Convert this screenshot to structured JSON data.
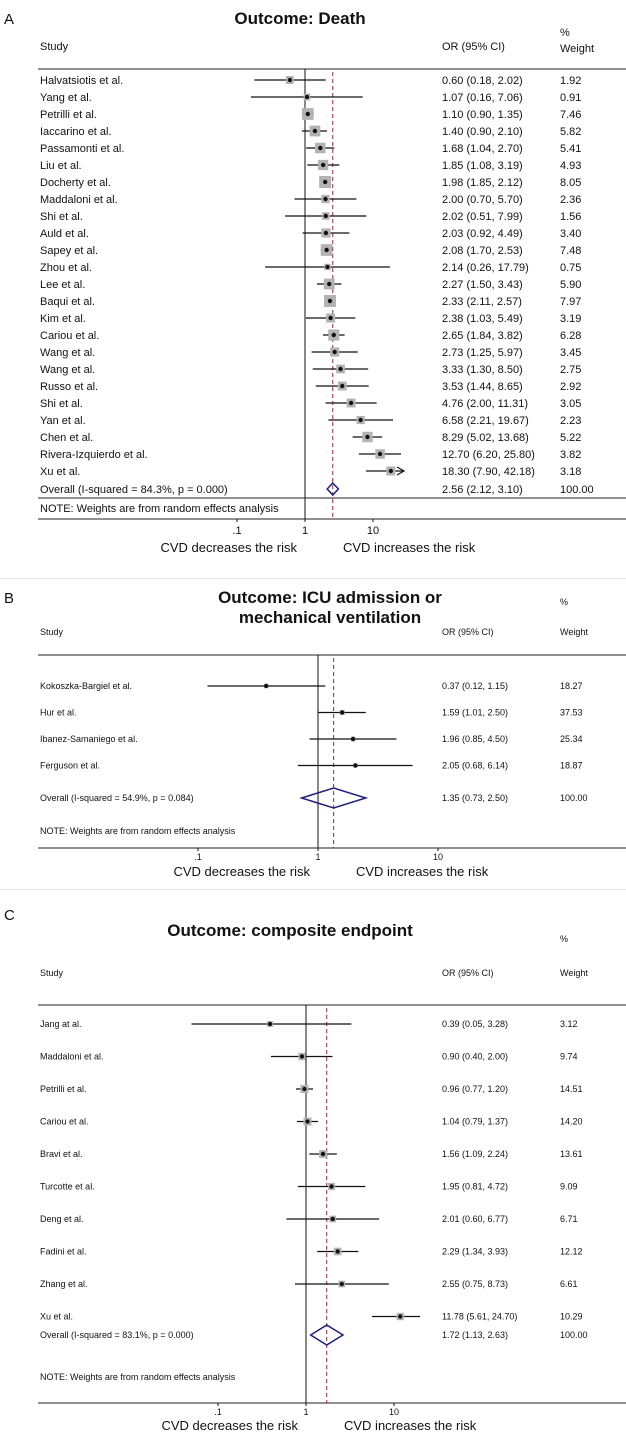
{
  "chart_data": [
    {
      "type": "forest",
      "panel_letter": "A",
      "title": [
        "Outcome: Death"
      ],
      "columns": {
        "study": "Study",
        "or": "OR (95% CI)",
        "weight_top": "%",
        "weight": "Weight"
      },
      "x_scale": "log",
      "x_ticks": [
        ".1",
        "1",
        "10"
      ],
      "x_tick_values": [
        0.1,
        1,
        10
      ],
      "null_value": 1,
      "overall_line": 2.56,
      "left_caption": "CVD decreases the risk",
      "right_caption": "CVD increases the risk",
      "note": "NOTE: Weights are from random effects analysis",
      "studies": [
        {
          "name": "Halvatsiotis et al.",
          "or": 0.6,
          "lo": 0.18,
          "hi": 2.02,
          "or_text": "0.60 (0.18, 2.02)",
          "weight": "1.92"
        },
        {
          "name": "Yang et al.",
          "or": 1.07,
          "lo": 0.16,
          "hi": 7.06,
          "or_text": "1.07 (0.16, 7.06)",
          "weight": "0.91"
        },
        {
          "name": "Petrilli et al.",
          "or": 1.1,
          "lo": 0.9,
          "hi": 1.35,
          "or_text": "1.10 (0.90, 1.35)",
          "weight": "7.46"
        },
        {
          "name": "Iaccarino et al.",
          "or": 1.4,
          "lo": 0.9,
          "hi": 2.1,
          "or_text": "1.40 (0.90, 2.10)",
          "weight": "5.82"
        },
        {
          "name": "Passamonti et al.",
          "or": 1.68,
          "lo": 1.04,
          "hi": 2.7,
          "or_text": "1.68 (1.04, 2.70)",
          "weight": "5.41"
        },
        {
          "name": "Liu et al.",
          "or": 1.85,
          "lo": 1.08,
          "hi": 3.19,
          "or_text": "1.85 (1.08, 3.19)",
          "weight": "4.93"
        },
        {
          "name": "Docherty et al.",
          "or": 1.98,
          "lo": 1.85,
          "hi": 2.12,
          "or_text": "1.98 (1.85, 2.12)",
          "weight": "8.05"
        },
        {
          "name": "Maddaloni et al.",
          "or": 2.0,
          "lo": 0.7,
          "hi": 5.7,
          "or_text": "2.00 (0.70, 5.70)",
          "weight": "2.36"
        },
        {
          "name": "Shi et al.",
          "or": 2.02,
          "lo": 0.51,
          "hi": 7.99,
          "or_text": "2.02 (0.51, 7.99)",
          "weight": "1.56"
        },
        {
          "name": "Auld et al.",
          "or": 2.03,
          "lo": 0.92,
          "hi": 4.49,
          "or_text": "2.03 (0.92, 4.49)",
          "weight": "3.40"
        },
        {
          "name": "Sapey et al.",
          "or": 2.08,
          "lo": 1.7,
          "hi": 2.53,
          "or_text": "2.08 (1.70, 2.53)",
          "weight": "7.48"
        },
        {
          "name": "Zhou et al.",
          "or": 2.14,
          "lo": 0.26,
          "hi": 17.79,
          "or_text": "2.14 (0.26, 17.79)",
          "weight": "0.75"
        },
        {
          "name": "Lee et al.",
          "or": 2.27,
          "lo": 1.5,
          "hi": 3.43,
          "or_text": "2.27 (1.50, 3.43)",
          "weight": "5.90"
        },
        {
          "name": "Baqui et al.",
          "or": 2.33,
          "lo": 2.11,
          "hi": 2.57,
          "or_text": "2.33 (2.11, 2.57)",
          "weight": "7.97"
        },
        {
          "name": "Kim et al.",
          "or": 2.38,
          "lo": 1.03,
          "hi": 5.49,
          "or_text": "2.38 (1.03, 5.49)",
          "weight": "3.19"
        },
        {
          "name": "Cariou et al.",
          "or": 2.65,
          "lo": 1.84,
          "hi": 3.82,
          "or_text": "2.65 (1.84, 3.82)",
          "weight": "6.28"
        },
        {
          "name": "Wang et al.",
          "or": 2.73,
          "lo": 1.25,
          "hi": 5.97,
          "or_text": "2.73 (1.25, 5.97)",
          "weight": "3.45"
        },
        {
          "name": "Wang et al.",
          "or": 3.33,
          "lo": 1.3,
          "hi": 8.5,
          "or_text": "3.33 (1.30, 8.50)",
          "weight": "2.75"
        },
        {
          "name": "Russo et al.",
          "or": 3.53,
          "lo": 1.44,
          "hi": 8.65,
          "or_text": "3.53 (1.44, 8.65)",
          "weight": "2.92"
        },
        {
          "name": "Shi et al.",
          "or": 4.76,
          "lo": 2.0,
          "hi": 11.31,
          "or_text": "4.76 (2.00, 11.31)",
          "weight": "3.05"
        },
        {
          "name": "Yan et al.",
          "or": 6.58,
          "lo": 2.21,
          "hi": 19.67,
          "or_text": "6.58 (2.21, 19.67)",
          "weight": "2.23"
        },
        {
          "name": "Chen et al.",
          "or": 8.29,
          "lo": 5.02,
          "hi": 13.68,
          "or_text": "8.29 (5.02, 13.68)",
          "weight": "5.22"
        },
        {
          "name": "Rivera-Izquierdo et al.",
          "or": 12.7,
          "lo": 6.2,
          "hi": 25.8,
          "or_text": "12.70 (6.20, 25.80)",
          "weight": "3.82"
        },
        {
          "name": "Xu et al.",
          "or": 18.3,
          "lo": 7.9,
          "hi": 42.18,
          "or_text": "18.30 (7.90, 42.18)",
          "weight": "3.18"
        }
      ],
      "overall": {
        "label": "Overall  (I-squared = 84.3%, p = 0.000)",
        "or": 2.56,
        "lo": 2.12,
        "hi": 3.1,
        "or_text": "2.56 (2.12, 3.10)",
        "weight": "100.00"
      }
    },
    {
      "type": "forest",
      "panel_letter": "B",
      "title": [
        "Outcome: ICU admission or",
        "mechanical ventilation"
      ],
      "columns": {
        "study": "Study",
        "or": "OR (95% CI)",
        "weight_top": "%",
        "weight": "Weight"
      },
      "x_scale": "log",
      "x_ticks": [
        ".1",
        "1",
        "10"
      ],
      "x_tick_values": [
        0.1,
        1,
        10
      ],
      "null_value": 1,
      "overall_line": 1.35,
      "left_caption": "CVD decreases the risk",
      "right_caption": "CVD increases the risk",
      "note": "NOTE: Weights are from random effects analysis",
      "studies": [
        {
          "name": "Kokoszka-Bargiel et al.",
          "or": 0.37,
          "lo": 0.12,
          "hi": 1.15,
          "or_text": "0.37 (0.12, 1.15)",
          "weight": "18.27"
        },
        {
          "name": "Hur et al.",
          "or": 1.59,
          "lo": 1.01,
          "hi": 2.5,
          "or_text": "1.59 (1.01, 2.50)",
          "weight": "37.53"
        },
        {
          "name": "Ibanez-Samaniego et al.",
          "or": 1.96,
          "lo": 0.85,
          "hi": 4.5,
          "or_text": "1.96 (0.85, 4.50)",
          "weight": "25.34"
        },
        {
          "name": "Ferguson et al.",
          "or": 2.05,
          "lo": 0.68,
          "hi": 6.14,
          "or_text": "2.05 (0.68, 6.14)",
          "weight": "18.87"
        }
      ],
      "overall": {
        "label": "Overall  (I-squared = 54.9%, p = 0.084)",
        "or": 1.35,
        "lo": 0.73,
        "hi": 2.5,
        "or_text": "1.35 (0.73, 2.50)",
        "weight": "100.00"
      }
    },
    {
      "type": "forest",
      "panel_letter": "C",
      "title": [
        "Outcome: composite endpoint"
      ],
      "columns": {
        "study": "Study",
        "or": "OR (95% CI)",
        "weight_top": "%",
        "weight": "Weight"
      },
      "x_scale": "log",
      "x_ticks": [
        ".1",
        "1",
        "10"
      ],
      "x_tick_values": [
        0.1,
        1,
        10
      ],
      "null_value": 1,
      "overall_line": 1.72,
      "left_caption": "CVD decreases the risk",
      "right_caption": "CVD increases the risk",
      "note": "NOTE: Weights are from random effects analysis",
      "studies": [
        {
          "name": "Jang at al.",
          "or": 0.39,
          "lo": 0.05,
          "hi": 3.28,
          "or_text": "0.39 (0.05, 3.28)",
          "weight": "3.12"
        },
        {
          "name": "Maddaloni et al.",
          "or": 0.9,
          "lo": 0.4,
          "hi": 2.0,
          "or_text": "0.90 (0.40, 2.00)",
          "weight": "9.74"
        },
        {
          "name": "Petrilli et al.",
          "or": 0.96,
          "lo": 0.77,
          "hi": 1.2,
          "or_text": "0.96 (0.77, 1.20)",
          "weight": "14.51"
        },
        {
          "name": "Cariou et al.",
          "or": 1.04,
          "lo": 0.79,
          "hi": 1.37,
          "or_text": "1.04 (0.79, 1.37)",
          "weight": "14.20"
        },
        {
          "name": "Bravi et al.",
          "or": 1.56,
          "lo": 1.09,
          "hi": 2.24,
          "or_text": "1.56 (1.09, 2.24)",
          "weight": "13.61"
        },
        {
          "name": "Turcotte et al.",
          "or": 1.95,
          "lo": 0.81,
          "hi": 4.72,
          "or_text": "1.95 (0.81, 4.72)",
          "weight": "9.09"
        },
        {
          "name": "Deng et al.",
          "or": 2.01,
          "lo": 0.6,
          "hi": 6.77,
          "or_text": "2.01 (0.60, 6.77)",
          "weight": "6.71"
        },
        {
          "name": "Fadini et al.",
          "or": 2.29,
          "lo": 1.34,
          "hi": 3.93,
          "or_text": "2.29 (1.34, 3.93)",
          "weight": "12.12"
        },
        {
          "name": "Zhang et al.",
          "or": 2.55,
          "lo": 0.75,
          "hi": 8.73,
          "or_text": "2.55 (0.75, 8.73)",
          "weight": "6.61"
        },
        {
          "name": "Xu et al.",
          "or": 11.78,
          "lo": 5.61,
          "hi": 24.7,
          "or_text": "11.78 (5.61, 24.70)",
          "weight": "10.29"
        }
      ],
      "overall": {
        "label": "Overall  (I-squared = 83.1%, p = 0.000)",
        "or": 1.72,
        "lo": 1.13,
        "hi": 2.63,
        "or_text": "1.72 (1.13, 2.63)",
        "weight": "100.00"
      }
    }
  ]
}
